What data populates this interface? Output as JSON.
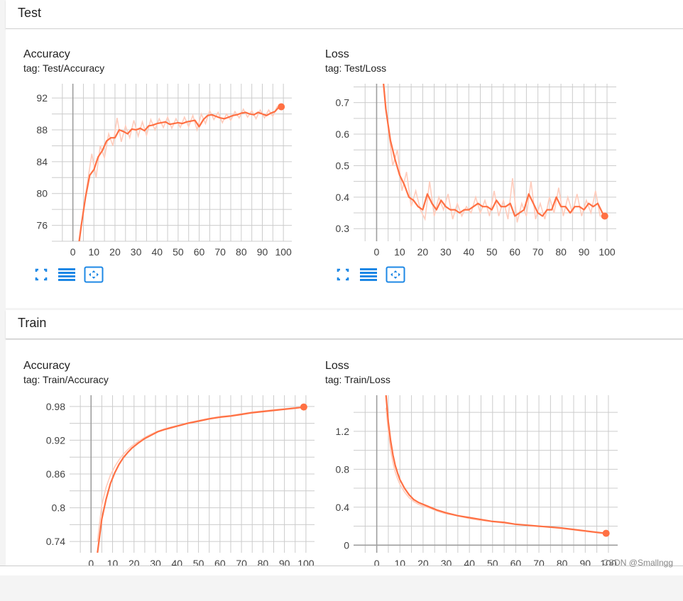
{
  "sections": [
    {
      "title": "Test",
      "cards": [
        {
          "title": "Accuracy",
          "tag": "tag: Test/Accuracy",
          "chart_data": {
            "type": "line",
            "title": "Accuracy",
            "xlim": [
              -10,
              104
            ],
            "ylim": [
              74,
              93.8
            ],
            "xticks": [
              0,
              10,
              20,
              30,
              40,
              50,
              60,
              70,
              80,
              90,
              100
            ],
            "yticks": [
              76,
              80,
              84,
              88,
              92
            ],
            "ytick_labels": [
              "76",
              "80",
              "84",
              "88",
              "92"
            ],
            "smoothed": {
              "x": [
                3,
                4,
                6,
                8,
                10,
                12,
                14,
                16,
                18,
                20,
                22,
                24,
                26,
                28,
                30,
                32,
                34,
                36,
                38,
                40,
                42,
                44,
                46,
                48,
                50,
                52,
                54,
                56,
                58,
                60,
                62,
                64,
                66,
                68,
                70,
                72,
                74,
                76,
                78,
                80,
                82,
                84,
                86,
                88,
                90,
                92,
                94,
                96,
                98,
                99
              ],
              "y": [
                74.0,
                76.0,
                79.5,
                82.3,
                83.0,
                84.6,
                85.4,
                86.6,
                87.0,
                87.0,
                88.0,
                87.8,
                87.5,
                88.1,
                88.0,
                88.2,
                87.9,
                88.5,
                88.6,
                88.8,
                88.9,
                89.0,
                88.7,
                88.8,
                88.9,
                88.8,
                89.0,
                89.1,
                89.2,
                88.4,
                89.3,
                89.8,
                89.9,
                89.7,
                89.5,
                89.4,
                89.6,
                89.8,
                89.9,
                90.1,
                90.2,
                90.0,
                89.9,
                90.2,
                90.0,
                89.8,
                90.1,
                90.3,
                90.9,
                90.9
              ]
            },
            "raw": {
              "x": [
                3,
                5,
                7,
                9,
                11,
                13,
                15,
                17,
                19,
                21,
                23,
                25,
                27,
                29,
                31,
                33,
                35,
                37,
                39,
                41,
                43,
                45,
                47,
                49,
                51,
                53,
                55,
                57,
                59,
                61,
                63,
                65,
                67,
                69,
                71,
                73,
                75,
                77,
                79,
                81,
                83,
                85,
                87,
                89,
                91,
                93,
                95,
                97,
                99
              ],
              "y": [
                73.5,
                78.0,
                81.5,
                85.0,
                82.0,
                86.0,
                84.5,
                87.5,
                86.0,
                89.5,
                86.5,
                88.5,
                87.0,
                89.2,
                87.2,
                89.0,
                87.3,
                89.3,
                88.0,
                89.4,
                88.3,
                89.6,
                88.2,
                89.4,
                88.3,
                89.6,
                88.4,
                89.8,
                88.0,
                90.0,
                88.8,
                90.4,
                89.3,
                90.2,
                88.9,
                90.0,
                89.2,
                90.3,
                89.5,
                90.6,
                89.6,
                90.4,
                89.4,
                90.5,
                89.5,
                90.5,
                89.7,
                90.9,
                90.9
              ]
            }
          }
        },
        {
          "title": "Loss",
          "tag": "tag: Test/Loss",
          "chart_data": {
            "type": "line",
            "title": "Loss",
            "xlim": [
              -10,
              104
            ],
            "ylim": [
              0.26,
              0.76
            ],
            "xticks": [
              0,
              10,
              20,
              30,
              40,
              50,
              60,
              70,
              80,
              90,
              100
            ],
            "yticks": [
              0.3,
              0.4,
              0.5,
              0.6,
              0.7
            ],
            "ytick_labels": [
              "0.3",
              "0.4",
              "0.5",
              "0.6",
              "0.7"
            ],
            "smoothed": {
              "x": [
                3,
                4,
                6,
                8,
                10,
                12,
                14,
                16,
                18,
                20,
                22,
                24,
                26,
                28,
                30,
                32,
                34,
                36,
                38,
                40,
                42,
                44,
                46,
                48,
                50,
                52,
                54,
                56,
                58,
                60,
                62,
                64,
                66,
                68,
                70,
                72,
                74,
                76,
                78,
                80,
                82,
                84,
                86,
                88,
                90,
                92,
                94,
                96,
                98,
                99
              ],
              "y": [
                0.76,
                0.68,
                0.58,
                0.52,
                0.47,
                0.44,
                0.4,
                0.39,
                0.37,
                0.36,
                0.41,
                0.38,
                0.36,
                0.39,
                0.37,
                0.36,
                0.36,
                0.35,
                0.36,
                0.36,
                0.37,
                0.38,
                0.37,
                0.37,
                0.36,
                0.39,
                0.37,
                0.37,
                0.38,
                0.34,
                0.35,
                0.36,
                0.41,
                0.38,
                0.35,
                0.34,
                0.36,
                0.36,
                0.4,
                0.37,
                0.37,
                0.35,
                0.37,
                0.37,
                0.36,
                0.38,
                0.37,
                0.38,
                0.35,
                0.34
              ]
            },
            "raw": {
              "x": [
                3,
                5,
                7,
                9,
                11,
                13,
                15,
                17,
                19,
                21,
                23,
                25,
                27,
                29,
                31,
                33,
                35,
                37,
                39,
                41,
                43,
                45,
                47,
                49,
                51,
                53,
                55,
                57,
                59,
                61,
                63,
                65,
                67,
                69,
                71,
                73,
                75,
                77,
                79,
                81,
                83,
                85,
                87,
                89,
                91,
                93,
                95,
                97,
                99
              ],
              "y": [
                0.76,
                0.62,
                0.5,
                0.55,
                0.42,
                0.48,
                0.37,
                0.42,
                0.36,
                0.33,
                0.45,
                0.34,
                0.4,
                0.36,
                0.41,
                0.33,
                0.38,
                0.34,
                0.37,
                0.35,
                0.4,
                0.35,
                0.39,
                0.34,
                0.42,
                0.34,
                0.39,
                0.33,
                0.46,
                0.32,
                0.38,
                0.34,
                0.45,
                0.33,
                0.38,
                0.33,
                0.4,
                0.35,
                0.43,
                0.34,
                0.4,
                0.35,
                0.41,
                0.34,
                0.39,
                0.35,
                0.42,
                0.34,
                0.34
              ]
            }
          }
        }
      ]
    },
    {
      "title": "Train",
      "cards": [
        {
          "title": "Accuracy",
          "tag": "tag: Train/Accuracy",
          "chart_data": {
            "type": "line",
            "title": "Accuracy",
            "xlim": [
              -10,
              104
            ],
            "ylim": [
              0.72,
              1.0
            ],
            "xticks": [
              0,
              10,
              20,
              30,
              40,
              50,
              60,
              70,
              80,
              90,
              100
            ],
            "yticks": [
              0.74,
              0.8,
              0.86,
              0.92,
              0.98
            ],
            "ytick_labels": [
              "0.74",
              "0.8",
              "0.86",
              "0.92",
              "0.98"
            ],
            "smoothed": {
              "x": [
                3,
                5,
                7,
                9,
                11,
                13,
                15,
                17,
                19,
                22,
                25,
                28,
                31,
                34,
                37,
                40,
                45,
                50,
                55,
                60,
                65,
                70,
                75,
                80,
                85,
                90,
                95,
                99
              ],
              "y": [
                0.72,
                0.78,
                0.815,
                0.843,
                0.862,
                0.877,
                0.889,
                0.898,
                0.906,
                0.915,
                0.923,
                0.929,
                0.935,
                0.939,
                0.942,
                0.945,
                0.95,
                0.954,
                0.958,
                0.961,
                0.963,
                0.966,
                0.969,
                0.971,
                0.973,
                0.975,
                0.977,
                0.979
              ]
            },
            "raw": {
              "x": [
                3,
                5,
                7,
                9,
                11,
                13,
                15,
                17,
                19,
                22,
                25,
                28,
                31,
                34,
                37,
                40,
                45,
                50,
                55,
                60,
                65,
                70,
                75,
                80,
                85,
                90,
                95,
                99
              ],
              "y": [
                0.74,
                0.805,
                0.836,
                0.858,
                0.873,
                0.885,
                0.895,
                0.903,
                0.91,
                0.918,
                0.925,
                0.931,
                0.936,
                0.94,
                0.943,
                0.946,
                0.951,
                0.955,
                0.959,
                0.962,
                0.964,
                0.967,
                0.97,
                0.972,
                0.974,
                0.976,
                0.978,
                0.979
              ]
            }
          }
        },
        {
          "title": "Loss",
          "tag": "tag: Train/Loss",
          "chart_data": {
            "type": "line",
            "title": "Loss",
            "xlim": [
              -10,
              104
            ],
            "ylim": [
              -0.08,
              1.58
            ],
            "xticks": [
              0,
              10,
              20,
              30,
              40,
              50,
              60,
              70,
              80,
              90,
              100
            ],
            "yticks": [
              0,
              0.4,
              0.8,
              1.2
            ],
            "ytick_labels": [
              "0",
              "0.4",
              "0.8",
              "1.2"
            ],
            "smoothed": {
              "x": [
                4,
                5,
                6,
                7,
                8,
                9,
                10,
                12,
                14,
                16,
                18,
                20,
                23,
                26,
                30,
                35,
                40,
                45,
                50,
                55,
                60,
                65,
                70,
                75,
                80,
                85,
                90,
                95,
                99
              ],
              "y": [
                1.58,
                1.3,
                1.1,
                0.95,
                0.84,
                0.76,
                0.69,
                0.6,
                0.53,
                0.48,
                0.45,
                0.43,
                0.4,
                0.37,
                0.34,
                0.31,
                0.29,
                0.27,
                0.25,
                0.24,
                0.22,
                0.21,
                0.2,
                0.19,
                0.18,
                0.165,
                0.15,
                0.135,
                0.125
              ]
            },
            "raw": {
              "x": [
                4,
                5,
                6,
                7,
                8,
                9,
                10,
                12,
                14,
                16,
                18,
                20,
                23,
                26,
                30,
                35,
                40,
                45,
                50,
                55,
                60,
                65,
                70,
                75,
                80,
                85,
                90,
                95,
                99
              ],
              "y": [
                1.45,
                1.2,
                1.0,
                0.87,
                0.77,
                0.7,
                0.64,
                0.56,
                0.5,
                0.46,
                0.43,
                0.41,
                0.39,
                0.36,
                0.33,
                0.31,
                0.28,
                0.26,
                0.25,
                0.23,
                0.22,
                0.21,
                0.2,
                0.19,
                0.175,
                0.16,
                0.145,
                0.13,
                0.12
              ]
            }
          }
        }
      ]
    }
  ],
  "colors": {
    "series": "#ff7043",
    "raw": "#ffccbc",
    "grid": "#cccccc",
    "axis": "#9e9e9e"
  },
  "icons": [
    "fullscreen-icon",
    "toggle-log-scale-icon",
    "fit-domain-icon"
  ],
  "watermark": "CSDN @Smallngg"
}
